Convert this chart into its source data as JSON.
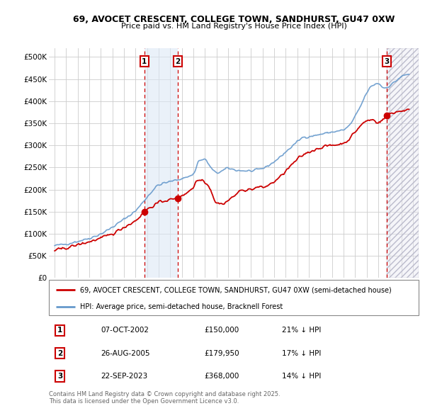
{
  "title1": "69, AVOCET CRESCENT, COLLEGE TOWN, SANDHURST, GU47 0XW",
  "title2": "Price paid vs. HM Land Registry's House Price Index (HPI)",
  "xlim": [
    1994.5,
    2026.5
  ],
  "ylim": [
    0,
    520000
  ],
  "yticks": [
    0,
    50000,
    100000,
    150000,
    200000,
    250000,
    300000,
    350000,
    400000,
    450000,
    500000
  ],
  "ytick_labels": [
    "£0",
    "£50K",
    "£100K",
    "£150K",
    "£200K",
    "£250K",
    "£300K",
    "£350K",
    "£400K",
    "£450K",
    "£500K"
  ],
  "sale1_x": 2002.77,
  "sale1_y": 150000,
  "sale1_label": "1",
  "sale1_date": "07-OCT-2002",
  "sale1_price": "£150,000",
  "sale1_hpi": "21% ↓ HPI",
  "sale2_x": 2005.65,
  "sale2_y": 179950,
  "sale2_label": "2",
  "sale2_date": "26-AUG-2005",
  "sale2_price": "£179,950",
  "sale2_hpi": "17% ↓ HPI",
  "sale3_x": 2023.73,
  "sale3_y": 368000,
  "sale3_label": "3",
  "sale3_date": "22-SEP-2023",
  "sale3_price": "£368,000",
  "sale3_hpi": "14% ↓ HPI",
  "legend_line1": "69, AVOCET CRESCENT, COLLEGE TOWN, SANDHURST, GU47 0XW (semi-detached house)",
  "legend_line2": "HPI: Average price, semi-detached house, Bracknell Forest",
  "footnote": "Contains HM Land Registry data © Crown copyright and database right 2025.\nThis data is licensed under the Open Government Licence v3.0.",
  "sale_color": "#cc0000",
  "hpi_color": "#6699cc",
  "bg_color": "#ffffff",
  "grid_color": "#cccccc"
}
